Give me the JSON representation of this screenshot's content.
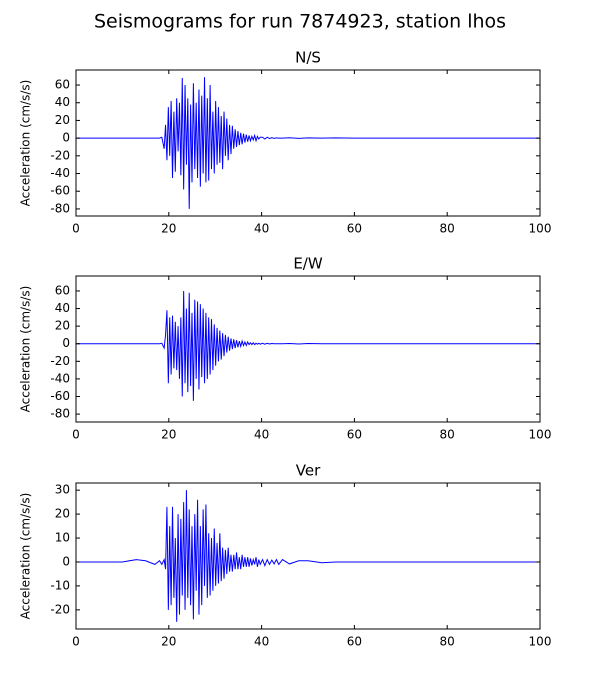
{
  "title": "Seismograms for run 7874923, station lhos",
  "chart_data": [
    {
      "type": "line",
      "title": "N/S",
      "ylabel": "Acceleration (cm/s/s)",
      "color": "#0000ff",
      "xlim": [
        0,
        100
      ],
      "xticks": [
        0,
        20,
        40,
        60,
        80,
        100
      ],
      "ylim": [
        -88,
        77
      ],
      "yticks": [
        -80,
        -60,
        -40,
        -20,
        0,
        20,
        40,
        60
      ],
      "x": [
        0,
        5,
        10,
        13,
        15,
        17,
        18,
        18.5,
        19,
        19.3,
        19.6,
        19.9,
        20.2,
        20.5,
        20.8,
        21.1,
        21.4,
        21.7,
        22,
        22.3,
        22.6,
        22.9,
        23.2,
        23.5,
        23.8,
        24.1,
        24.4,
        24.7,
        25,
        25.3,
        25.6,
        25.9,
        26.2,
        26.5,
        26.8,
        27.1,
        27.4,
        27.7,
        28,
        28.3,
        28.6,
        28.9,
        29.2,
        29.5,
        29.8,
        30.1,
        30.4,
        30.7,
        31,
        31.3,
        31.6,
        31.9,
        32.2,
        32.5,
        32.8,
        33.1,
        33.4,
        33.7,
        34,
        34.3,
        34.6,
        34.9,
        35.2,
        35.5,
        35.8,
        36.1,
        36.4,
        36.7,
        37,
        37.3,
        37.6,
        37.9,
        38.2,
        38.5,
        38.8,
        39.1,
        39.4,
        39.7,
        40.2,
        40.7,
        41.2,
        41.7,
        42.2,
        42.7,
        43.2,
        43.7,
        44.5,
        46,
        48,
        50,
        53,
        56,
        60,
        70,
        80,
        90,
        100
      ],
      "values": [
        0,
        0,
        0,
        0,
        0,
        0,
        0,
        1,
        -12,
        15,
        -25,
        35,
        -20,
        42,
        -45,
        30,
        -38,
        45,
        -15,
        40,
        -42,
        68,
        -58,
        60,
        -30,
        45,
        -80,
        38,
        -50,
        62,
        -35,
        40,
        -45,
        55,
        -55,
        48,
        -40,
        69,
        -50,
        45,
        -48,
        60,
        -35,
        30,
        -40,
        42,
        -30,
        35,
        -28,
        25,
        -35,
        30,
        -20,
        22,
        -25,
        15,
        -18,
        14,
        -12,
        10,
        -10,
        8,
        -8,
        6,
        -7,
        5,
        -5,
        4,
        -4,
        3,
        -3,
        2,
        -2,
        3,
        -3,
        2,
        -1,
        1,
        1,
        -1,
        1,
        -0.5,
        0.5,
        -0.3,
        0.3,
        0,
        0,
        0.5,
        -0.3,
        0.3,
        0,
        0.3,
        0,
        0,
        0,
        0,
        0
      ]
    },
    {
      "type": "line",
      "title": "E/W",
      "ylabel": "Acceleration (cm/s/s)",
      "color": "#0000ff",
      "xlim": [
        0,
        100
      ],
      "xticks": [
        0,
        20,
        40,
        60,
        80,
        100
      ],
      "ylim": [
        -89,
        77
      ],
      "yticks": [
        -80,
        -60,
        -40,
        -20,
        0,
        20,
        40,
        60
      ],
      "x": [
        0,
        5,
        10,
        13,
        15,
        17,
        18,
        18.5,
        19,
        19.3,
        19.6,
        19.9,
        20.2,
        20.5,
        20.8,
        21.1,
        21.4,
        21.7,
        22,
        22.3,
        22.6,
        22.9,
        23.2,
        23.5,
        23.8,
        24.1,
        24.4,
        24.7,
        25,
        25.3,
        25.6,
        25.9,
        26.2,
        26.5,
        26.8,
        27.1,
        27.4,
        27.7,
        28,
        28.3,
        28.6,
        28.9,
        29.2,
        29.5,
        29.8,
        30.1,
        30.4,
        30.7,
        31,
        31.3,
        31.6,
        31.9,
        32.2,
        32.5,
        32.8,
        33.1,
        33.4,
        33.7,
        34,
        34.3,
        34.6,
        34.9,
        35.2,
        35.5,
        35.8,
        36.1,
        36.4,
        36.7,
        37,
        37.3,
        37.6,
        37.9,
        38.2,
        38.5,
        38.8,
        39.1,
        39.4,
        39.7,
        40.2,
        40.7,
        41.2,
        41.7,
        42.2,
        42.7,
        43.2,
        43.7,
        44.5,
        46,
        48,
        50,
        53,
        56,
        60,
        70,
        80,
        90,
        100
      ],
      "values": [
        0,
        0,
        0,
        0,
        0,
        0,
        0,
        0.5,
        -5,
        10,
        38,
        -45,
        30,
        -35,
        32,
        -28,
        25,
        -30,
        20,
        -40,
        30,
        -60,
        60,
        -45,
        40,
        -55,
        58,
        -48,
        35,
        -65,
        50,
        -40,
        48,
        -52,
        45,
        -38,
        40,
        -45,
        35,
        -40,
        30,
        -35,
        28,
        -30,
        22,
        -25,
        18,
        -20,
        15,
        -18,
        12,
        -14,
        10,
        -10,
        8,
        -8,
        6,
        -6,
        5,
        -5,
        4,
        -4,
        3,
        -3,
        3,
        -2,
        2,
        -2,
        2,
        -1,
        1,
        -1,
        1,
        -1,
        0.5,
        -0.5,
        0.5,
        -0.5,
        0.5,
        -0.5,
        0.5,
        -0.3,
        0.3,
        0,
        0,
        0,
        0,
        0.3,
        -0.3,
        0.3,
        0,
        0,
        0,
        0,
        0,
        0,
        0
      ]
    },
    {
      "type": "line",
      "title": "Ver",
      "ylabel": "Acceleration (cm/s/s)",
      "color": "#0000ff",
      "xlim": [
        0,
        100
      ],
      "xticks": [
        0,
        20,
        40,
        60,
        80,
        100
      ],
      "ylim": [
        -28,
        33
      ],
      "yticks": [
        -20,
        -10,
        0,
        10,
        20,
        30
      ],
      "x": [
        0,
        5,
        10,
        13,
        15,
        17,
        18,
        18.5,
        19,
        19.3,
        19.6,
        19.9,
        20.2,
        20.5,
        20.8,
        21.1,
        21.4,
        21.7,
        22,
        22.3,
        22.6,
        22.9,
        23.2,
        23.5,
        23.8,
        24.1,
        24.4,
        24.7,
        25,
        25.3,
        25.6,
        25.9,
        26.2,
        26.5,
        26.8,
        27.1,
        27.4,
        27.7,
        28,
        28.3,
        28.6,
        28.9,
        29.2,
        29.5,
        29.8,
        30.1,
        30.4,
        30.7,
        31,
        31.3,
        31.6,
        31.9,
        32.2,
        32.5,
        32.8,
        33.1,
        33.4,
        33.7,
        34,
        34.3,
        34.6,
        34.9,
        35.2,
        35.5,
        35.8,
        36.1,
        36.4,
        36.7,
        37,
        37.3,
        37.6,
        37.9,
        38.2,
        38.5,
        38.8,
        39.1,
        39.4,
        39.7,
        40.2,
        40.7,
        41.2,
        41.7,
        42.2,
        42.7,
        43.2,
        43.7,
        44.5,
        46,
        48,
        50,
        53,
        56,
        60,
        70,
        80,
        90,
        100
      ],
      "values": [
        0,
        0,
        0,
        1,
        0.5,
        -1,
        0.5,
        -1,
        1,
        -3,
        23,
        -20,
        15,
        -18,
        23,
        -15,
        10,
        -25,
        20,
        -22,
        18,
        -14,
        25,
        -20,
        30,
        -15,
        22,
        -18,
        15,
        -24,
        20,
        -12,
        26,
        -22,
        15,
        -18,
        22,
        -10,
        24,
        -15,
        12,
        -14,
        10,
        -12,
        14,
        -10,
        8,
        -9,
        12,
        -8,
        6,
        -7,
        5,
        -5,
        6,
        -4,
        3,
        -4,
        3,
        -3,
        4,
        -3,
        2,
        -3,
        3,
        -2,
        2,
        -2,
        2,
        -2,
        1.5,
        -1.5,
        1,
        -1,
        2,
        -2,
        1,
        -1,
        1,
        -1.5,
        1,
        -1,
        0.8,
        -0.8,
        1,
        -1,
        1,
        -0.8,
        0.5,
        0.5,
        -0.3,
        0,
        0,
        0,
        0,
        0,
        0
      ]
    }
  ]
}
